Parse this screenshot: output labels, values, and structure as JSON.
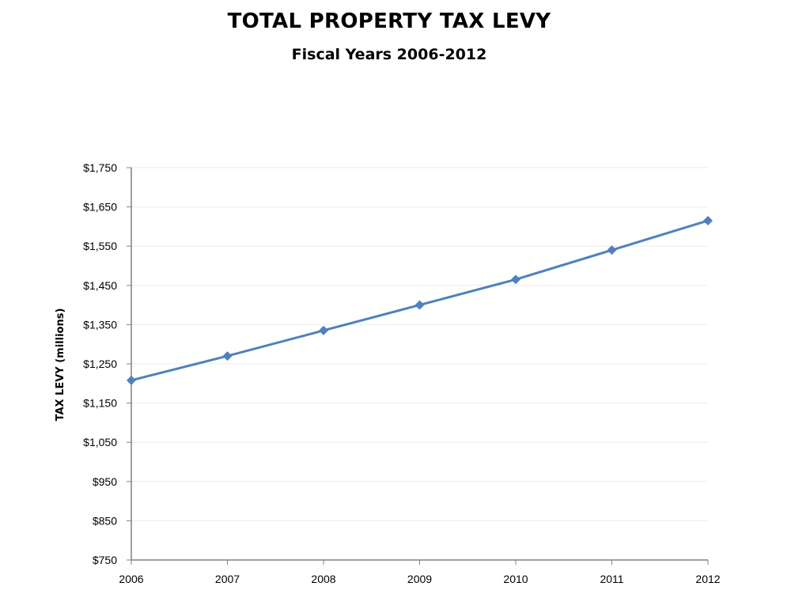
{
  "chart_data": {
    "type": "line",
    "title": "TOTAL PROPERTY TAX LEVY",
    "subtitle": "Fiscal Years 2006-2012",
    "xlabel": "",
    "ylabel": "TAX LEVY (millions)",
    "categories": [
      "2006",
      "2007",
      "2008",
      "2009",
      "2010",
      "2011",
      "2012"
    ],
    "values": [
      1208,
      1270,
      1335,
      1400,
      1465,
      1540,
      1615
    ],
    "ylim": [
      750,
      1750
    ],
    "yticks": [
      750,
      850,
      950,
      1050,
      1150,
      1250,
      1350,
      1450,
      1550,
      1650,
      1750
    ],
    "ytick_labels": [
      "$750",
      "$850",
      "$950",
      "$1,050",
      "$1,150",
      "$1,250",
      "$1,350",
      "$1,450",
      "$1,550",
      "$1,650",
      "$1,750"
    ],
    "grid": true,
    "legend": "none",
    "colors": {
      "line": "#4f81bd",
      "grid": "#ececec",
      "axis": "#808080"
    }
  }
}
